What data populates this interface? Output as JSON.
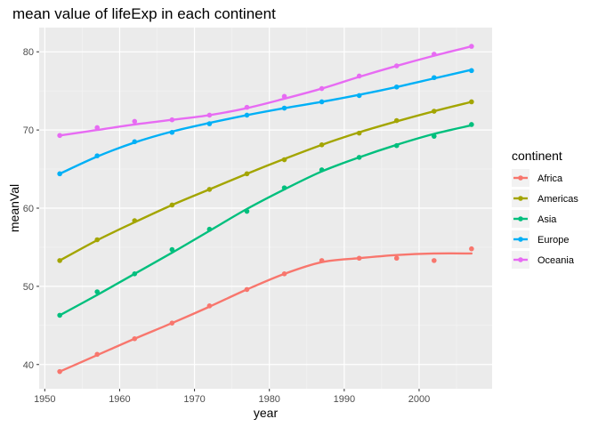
{
  "chart_data": {
    "type": "line",
    "title": "mean value of lifeExp in each continent",
    "xlabel": "year",
    "ylabel": "meanVal",
    "xlim": [
      1949.25,
      2009.75
    ],
    "ylim": [
      36.9,
      83.1
    ],
    "x_ticks": [
      1950,
      1960,
      1970,
      1980,
      1990,
      2000
    ],
    "y_ticks": [
      40,
      50,
      60,
      70,
      80
    ],
    "grid": true,
    "legend": {
      "title": "continent",
      "position": "right"
    },
    "x": [
      1952,
      1957,
      1962,
      1967,
      1972,
      1977,
      1982,
      1987,
      1992,
      1997,
      2002,
      2007
    ],
    "series": [
      {
        "name": "Africa",
        "color": "#F8766D",
        "values": [
          39.1,
          41.3,
          43.3,
          45.3,
          47.5,
          49.6,
          51.6,
          53.3,
          53.6,
          53.6,
          53.3,
          54.8
        ],
        "smooth": [
          39.1,
          41.2,
          43.3,
          45.3,
          47.4,
          49.6,
          51.6,
          53.1,
          53.6,
          54.0,
          54.2,
          54.2
        ]
      },
      {
        "name": "Americas",
        "color": "#A3A500",
        "values": [
          53.3,
          55.96,
          58.4,
          60.4,
          62.4,
          64.4,
          66.2,
          68.1,
          69.6,
          71.2,
          72.4,
          73.6
        ],
        "smooth": [
          53.3,
          55.9,
          58.2,
          60.4,
          62.4,
          64.4,
          66.3,
          68.1,
          69.7,
          71.1,
          72.4,
          73.6
        ]
      },
      {
        "name": "Asia",
        "color": "#00BF7D",
        "values": [
          46.3,
          49.3,
          51.6,
          54.7,
          57.3,
          59.6,
          62.6,
          64.9,
          66.5,
          68.0,
          69.2,
          70.7
        ],
        "smooth": [
          46.3,
          48.9,
          51.6,
          54.3,
          57.1,
          59.9,
          62.4,
          64.7,
          66.5,
          68.1,
          69.5,
          70.6
        ]
      },
      {
        "name": "Europe",
        "color": "#00B0F6",
        "values": [
          64.4,
          66.7,
          68.5,
          69.7,
          70.8,
          71.9,
          72.8,
          73.6,
          74.4,
          75.5,
          76.7,
          77.6
        ],
        "smooth": [
          64.4,
          66.6,
          68.4,
          69.8,
          70.9,
          71.9,
          72.8,
          73.6,
          74.5,
          75.5,
          76.6,
          77.7
        ]
      },
      {
        "name": "Oceania",
        "color": "#E76BF3",
        "values": [
          69.3,
          70.3,
          71.1,
          71.3,
          71.9,
          72.9,
          74.3,
          75.3,
          76.9,
          78.2,
          79.7,
          80.7
        ],
        "smooth": [
          69.3,
          70.0,
          70.7,
          71.3,
          71.9,
          72.8,
          74.0,
          75.3,
          76.8,
          78.2,
          79.5,
          80.7
        ]
      }
    ]
  }
}
